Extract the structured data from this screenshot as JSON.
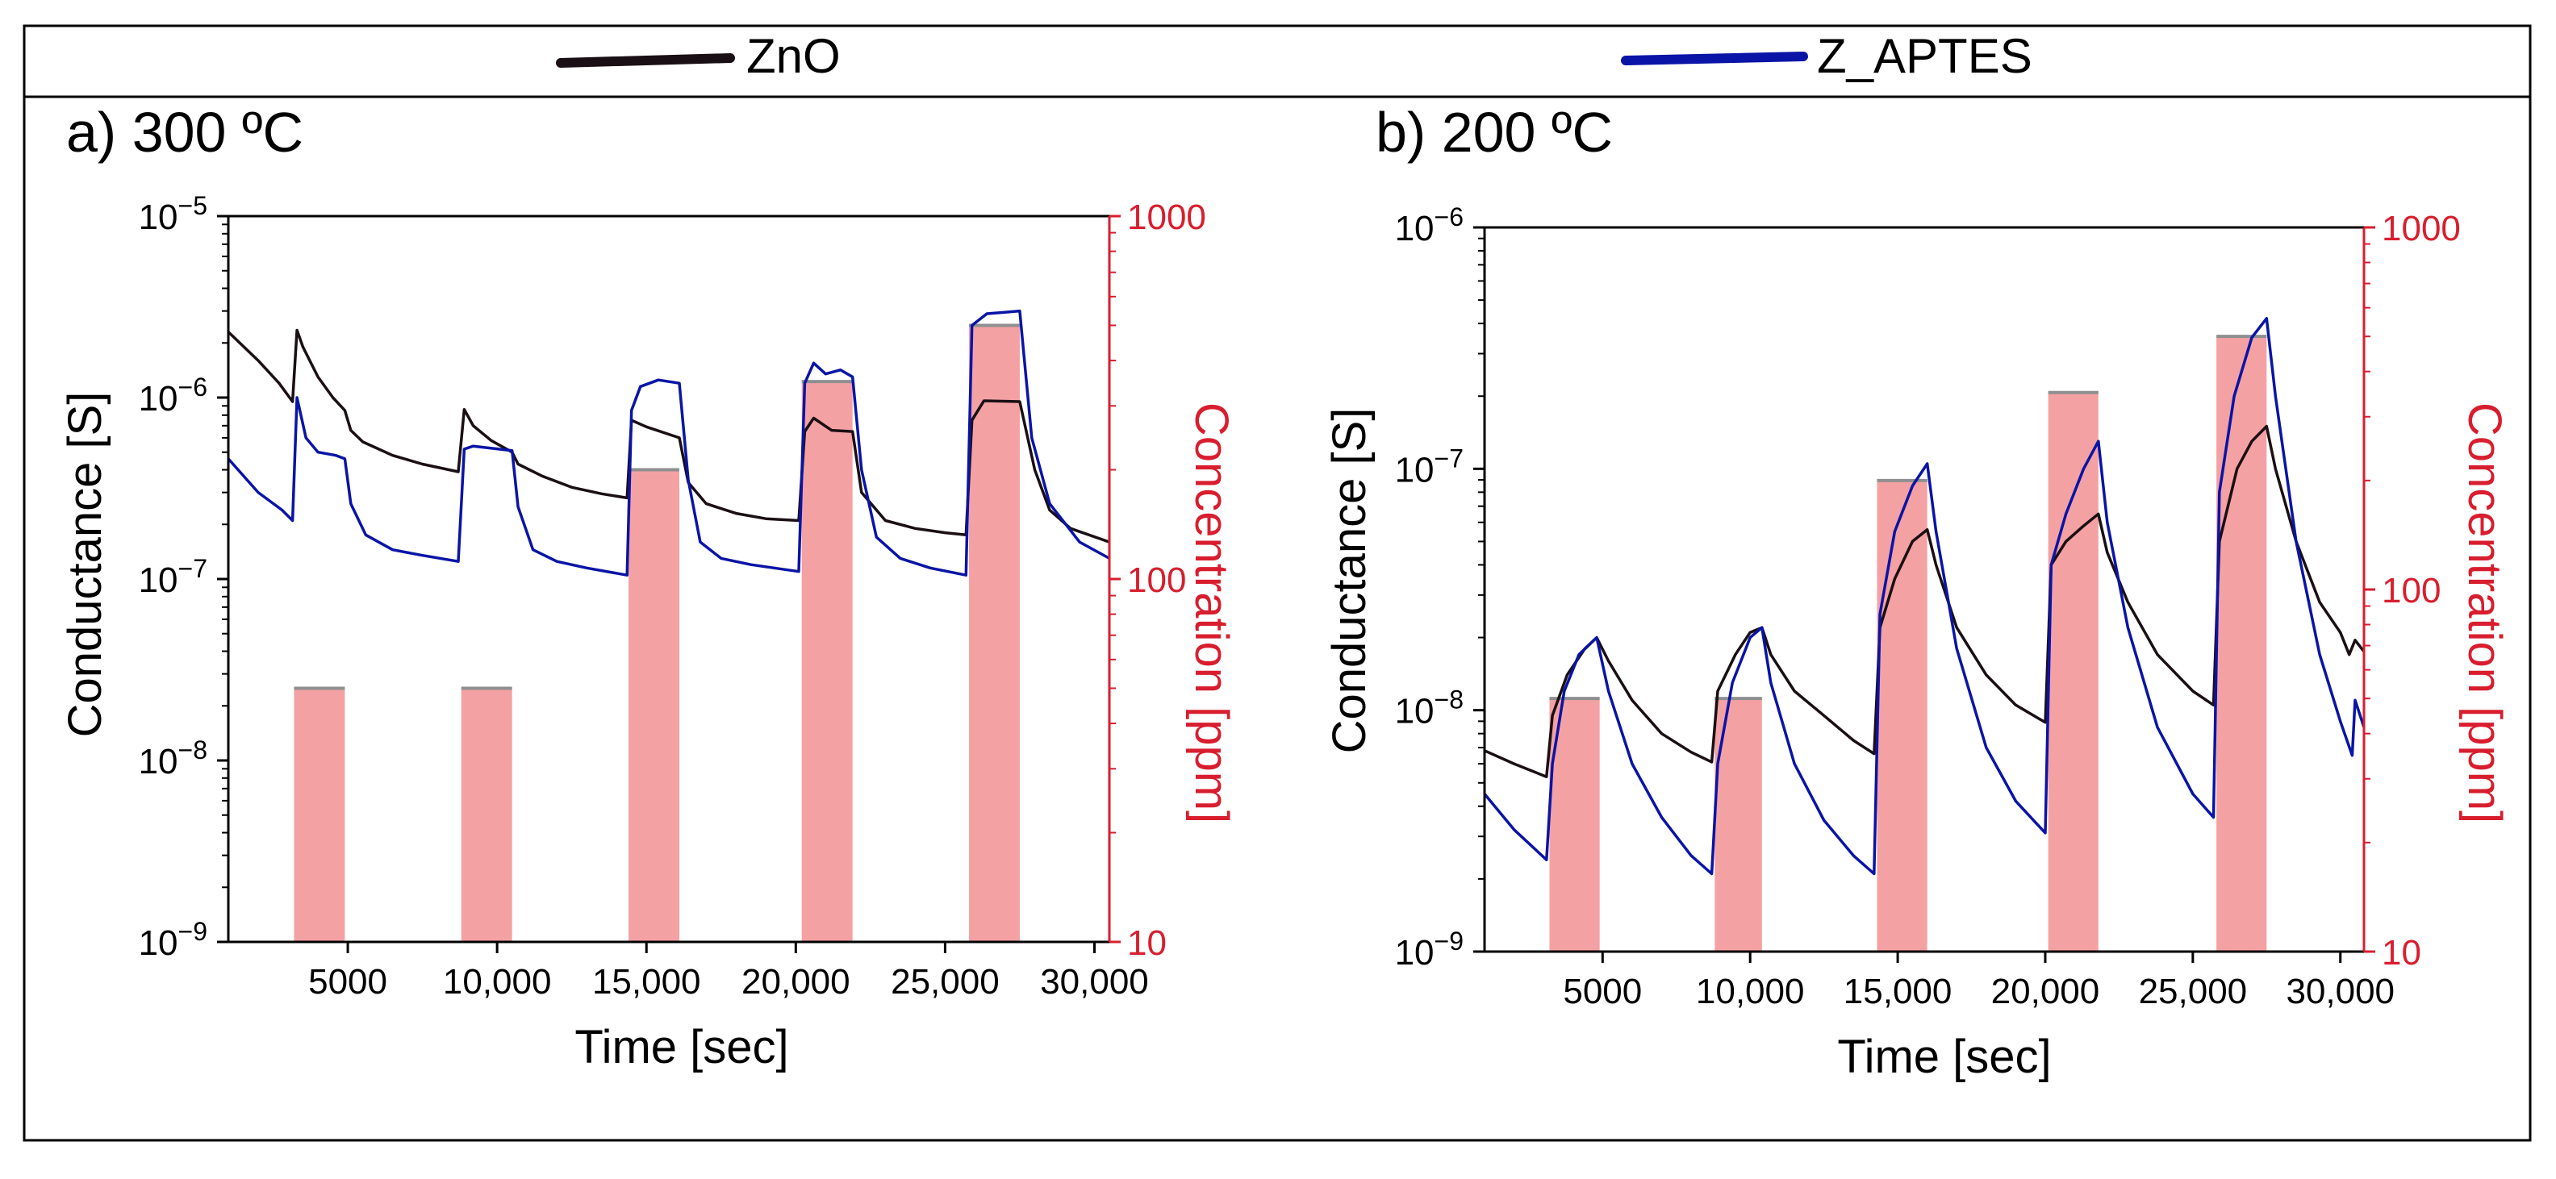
{
  "legend": [
    {
      "label": "ZnO",
      "color": "#1a0f14"
    },
    {
      "label": "Z_APTES",
      "color": "#0a14a6"
    }
  ],
  "colors": {
    "bar": "#f4a1a4",
    "bar_cap": "#8f8f8f",
    "right_axis": "#d81e2e",
    "axis": "#000000"
  },
  "chart_data": [
    {
      "id": "a",
      "type": "line",
      "title": "a) 300 ºC",
      "xlabel": "Time [sec]",
      "ylabel": "Conductance [S]",
      "y2label": "Concentration [ppm]",
      "x_ticks": [
        5000,
        10000,
        15000,
        20000,
        25000,
        30000
      ],
      "x_tick_labels": [
        "5000",
        "10,000",
        "15,000",
        "20,000",
        "25,000",
        "30,000"
      ],
      "xlim": [
        1000,
        30500
      ],
      "ylim": [
        1e-09,
        1e-05
      ],
      "y_scale": "log",
      "y_tick_exponents": [
        -9,
        -8,
        -7,
        -6,
        -5
      ],
      "y2lim": [
        10,
        1000
      ],
      "y2_scale": "log",
      "y2_ticks": [
        10,
        100,
        1000
      ],
      "concentration_bars": [
        {
          "x_start": 3200,
          "x_end": 4900,
          "ppm": 50
        },
        {
          "x_start": 8800,
          "x_end": 10500,
          "ppm": 50
        },
        {
          "x_start": 14400,
          "x_end": 16100,
          "ppm": 200
        },
        {
          "x_start": 20200,
          "x_end": 21900,
          "ppm": 350
        },
        {
          "x_start": 25800,
          "x_end": 27500,
          "ppm": 500
        }
      ],
      "series": [
        {
          "name": "ZnO",
          "color": "#1a0f14",
          "points": [
            [
              1000,
              2.3e-06
            ],
            [
              2000,
              1.6e-06
            ],
            [
              2700,
              1.2e-06
            ],
            [
              3150,
              9.5e-07
            ],
            [
              3300,
              2.35e-06
            ],
            [
              3500,
              1.9e-06
            ],
            [
              4000,
              1.3e-06
            ],
            [
              4500,
              1e-06
            ],
            [
              4900,
              8.5e-07
            ],
            [
              5100,
              6.6e-07
            ],
            [
              5500,
              5.7e-07
            ],
            [
              6500,
              4.8e-07
            ],
            [
              7500,
              4.3e-07
            ],
            [
              8700,
              3.9e-07
            ],
            [
              8900,
              8.6e-07
            ],
            [
              9200,
              7e-07
            ],
            [
              9800,
              5.8e-07
            ],
            [
              10500,
              5e-07
            ],
            [
              10700,
              4.3e-07
            ],
            [
              11500,
              3.7e-07
            ],
            [
              12500,
              3.2e-07
            ],
            [
              13500,
              2.95e-07
            ],
            [
              14350,
              2.8e-07
            ],
            [
              14500,
              7.5e-07
            ],
            [
              15000,
              6.9e-07
            ],
            [
              16100,
              6e-07
            ],
            [
              16400,
              3.4e-07
            ],
            [
              17000,
              2.6e-07
            ],
            [
              18000,
              2.3e-07
            ],
            [
              19000,
              2.15e-07
            ],
            [
              20100,
              2.1e-07
            ],
            [
              20300,
              6.5e-07
            ],
            [
              20600,
              7.7e-07
            ],
            [
              21200,
              6.6e-07
            ],
            [
              21900,
              6.5e-07
            ],
            [
              22200,
              3e-07
            ],
            [
              23000,
              2.1e-07
            ],
            [
              24000,
              1.9e-07
            ],
            [
              25000,
              1.8e-07
            ],
            [
              25700,
              1.75e-07
            ],
            [
              25900,
              7.5e-07
            ],
            [
              26300,
              9.6e-07
            ],
            [
              27500,
              9.5e-07
            ],
            [
              28000,
              4e-07
            ],
            [
              28500,
              2.4e-07
            ],
            [
              29200,
              1.9e-07
            ],
            [
              30500,
              1.6e-07
            ]
          ]
        },
        {
          "name": "Z_APTES",
          "color": "#0a14a6",
          "points": [
            [
              1000,
              4.6e-07
            ],
            [
              2000,
              3e-07
            ],
            [
              2800,
              2.4e-07
            ],
            [
              3150,
              2.1e-07
            ],
            [
              3300,
              1e-06
            ],
            [
              3600,
              6e-07
            ],
            [
              4000,
              5e-07
            ],
            [
              4600,
              4.8e-07
            ],
            [
              4900,
              4.6e-07
            ],
            [
              5100,
              2.6e-07
            ],
            [
              5600,
              1.75e-07
            ],
            [
              6500,
              1.45e-07
            ],
            [
              7500,
              1.35e-07
            ],
            [
              8700,
              1.25e-07
            ],
            [
              8900,
              5.2e-07
            ],
            [
              9200,
              5.4e-07
            ],
            [
              10500,
              5.1e-07
            ],
            [
              10700,
              2.5e-07
            ],
            [
              11200,
              1.45e-07
            ],
            [
              12000,
              1.25e-07
            ],
            [
              13000,
              1.15e-07
            ],
            [
              14350,
              1.05e-07
            ],
            [
              14500,
              8.5e-07
            ],
            [
              14800,
              1.15e-06
            ],
            [
              15400,
              1.25e-06
            ],
            [
              16100,
              1.2e-06
            ],
            [
              16400,
              3.5e-07
            ],
            [
              16800,
              1.6e-07
            ],
            [
              17500,
              1.3e-07
            ],
            [
              18500,
              1.2e-07
            ],
            [
              20100,
              1.1e-07
            ],
            [
              20300,
              1.2e-06
            ],
            [
              20600,
              1.55e-06
            ],
            [
              21000,
              1.35e-06
            ],
            [
              21500,
              1.42e-06
            ],
            [
              21900,
              1.3e-06
            ],
            [
              22200,
              4e-07
            ],
            [
              22700,
              1.7e-07
            ],
            [
              23500,
              1.3e-07
            ],
            [
              24500,
              1.15e-07
            ],
            [
              25700,
              1.05e-07
            ],
            [
              25900,
              2.5e-06
            ],
            [
              26400,
              2.9e-06
            ],
            [
              27000,
              2.95e-06
            ],
            [
              27500,
              3e-06
            ],
            [
              27900,
              6e-07
            ],
            [
              28500,
              2.6e-07
            ],
            [
              29500,
              1.6e-07
            ],
            [
              30500,
              1.3e-07
            ]
          ]
        }
      ]
    },
    {
      "id": "b",
      "type": "line",
      "title": "b) 200 ºC",
      "xlabel": "Time [sec]",
      "ylabel": "Conductance [S]",
      "y2label": "Concentration [ppm]",
      "x_ticks": [
        5000,
        10000,
        15000,
        20000,
        25000,
        30000
      ],
      "x_tick_labels": [
        "5000",
        "10,000",
        "15,000",
        "20,000",
        "25,000",
        "30,000"
      ],
      "xlim": [
        1000,
        30800
      ],
      "ylim": [
        1e-09,
        1e-06
      ],
      "y_scale": "log",
      "y_tick_exponents": [
        -9,
        -8,
        -7,
        -6
      ],
      "y2lim": [
        10,
        1000
      ],
      "y2_scale": "log",
      "y2_ticks": [
        10,
        100,
        1000
      ],
      "concentration_bars": [
        {
          "x_start": 3200,
          "x_end": 4900,
          "ppm": 50
        },
        {
          "x_start": 8800,
          "x_end": 10400,
          "ppm": 50
        },
        {
          "x_start": 14300,
          "x_end": 16000,
          "ppm": 200
        },
        {
          "x_start": 20100,
          "x_end": 21800,
          "ppm": 350
        },
        {
          "x_start": 25800,
          "x_end": 27500,
          "ppm": 500
        }
      ],
      "series": [
        {
          "name": "ZnO",
          "color": "#1a0f14",
          "points": [
            [
              1000,
              6.8e-09
            ],
            [
              2000,
              6e-09
            ],
            [
              3100,
              5.3e-09
            ],
            [
              3300,
              9.5e-09
            ],
            [
              3800,
              1.4e-08
            ],
            [
              4400,
              1.8e-08
            ],
            [
              4800,
              2e-08
            ],
            [
              5200,
              1.6e-08
            ],
            [
              6000,
              1.1e-08
            ],
            [
              7000,
              8e-09
            ],
            [
              8000,
              6.7e-09
            ],
            [
              8700,
              6.1e-09
            ],
            [
              8900,
              1.2e-08
            ],
            [
              9500,
              1.7e-08
            ],
            [
              10000,
              2.1e-08
            ],
            [
              10400,
              2.2e-08
            ],
            [
              10700,
              1.7e-08
            ],
            [
              11500,
              1.2e-08
            ],
            [
              12500,
              9.5e-09
            ],
            [
              13500,
              7.5e-09
            ],
            [
              14200,
              6.6e-09
            ],
            [
              14400,
              2.2e-08
            ],
            [
              14900,
              3.5e-08
            ],
            [
              15500,
              5e-08
            ],
            [
              16000,
              5.6e-08
            ],
            [
              16300,
              4e-08
            ],
            [
              17000,
              2.2e-08
            ],
            [
              18000,
              1.4e-08
            ],
            [
              19000,
              1.05e-08
            ],
            [
              20000,
              8.9e-09
            ],
            [
              20200,
              4e-08
            ],
            [
              20700,
              5e-08
            ],
            [
              21300,
              5.8e-08
            ],
            [
              21800,
              6.5e-08
            ],
            [
              22100,
              4.5e-08
            ],
            [
              22800,
              2.8e-08
            ],
            [
              23800,
              1.7e-08
            ],
            [
              25000,
              1.2e-08
            ],
            [
              25700,
              1.05e-08
            ],
            [
              25900,
              5e-08
            ],
            [
              26500,
              1e-07
            ],
            [
              27000,
              1.3e-07
            ],
            [
              27500,
              1.5e-07
            ],
            [
              27800,
              1e-07
            ],
            [
              28500,
              5e-08
            ],
            [
              29300,
              2.8e-08
            ],
            [
              30000,
              2.1e-08
            ],
            [
              30300,
              1.7e-08
            ],
            [
              30500,
              1.95e-08
            ],
            [
              30800,
              1.75e-08
            ]
          ]
        },
        {
          "name": "Z_APTES",
          "color": "#0a14a6",
          "points": [
            [
              1000,
              4.5e-09
            ],
            [
              2000,
              3.2e-09
            ],
            [
              3100,
              2.4e-09
            ],
            [
              3300,
              6e-09
            ],
            [
              3700,
              1.2e-08
            ],
            [
              4200,
              1.7e-08
            ],
            [
              4800,
              2e-08
            ],
            [
              5200,
              1.2e-08
            ],
            [
              6000,
              6e-09
            ],
            [
              7000,
              3.6e-09
            ],
            [
              8000,
              2.5e-09
            ],
            [
              8700,
              2.1e-09
            ],
            [
              8900,
              6e-09
            ],
            [
              9400,
              1.3e-08
            ],
            [
              10000,
              2e-08
            ],
            [
              10400,
              2.2e-08
            ],
            [
              10700,
              1.3e-08
            ],
            [
              11500,
              6e-09
            ],
            [
              12500,
              3.5e-09
            ],
            [
              13500,
              2.5e-09
            ],
            [
              14200,
              2.1e-09
            ],
            [
              14400,
              2.5e-08
            ],
            [
              14900,
              5.5e-08
            ],
            [
              15500,
              8.5e-08
            ],
            [
              16000,
              1.05e-07
            ],
            [
              16300,
              5.5e-08
            ],
            [
              17000,
              1.8e-08
            ],
            [
              18000,
              7e-09
            ],
            [
              19000,
              4.2e-09
            ],
            [
              20000,
              3.1e-09
            ],
            [
              20200,
              4e-08
            ],
            [
              20700,
              6.5e-08
            ],
            [
              21300,
              1e-07
            ],
            [
              21800,
              1.3e-07
            ],
            [
              22100,
              6e-08
            ],
            [
              22800,
              2.2e-08
            ],
            [
              23800,
              8.5e-09
            ],
            [
              25000,
              4.5e-09
            ],
            [
              25700,
              3.6e-09
            ],
            [
              25900,
              8e-08
            ],
            [
              26400,
              2e-07
            ],
            [
              27000,
              3.5e-07
            ],
            [
              27500,
              4.2e-07
            ],
            [
              27800,
              2e-07
            ],
            [
              28500,
              5e-08
            ],
            [
              29300,
              1.7e-08
            ],
            [
              30000,
              9e-09
            ],
            [
              30400,
              6.5e-09
            ],
            [
              30500,
              1.1e-08
            ],
            [
              30800,
              8.5e-09
            ]
          ]
        }
      ]
    }
  ]
}
